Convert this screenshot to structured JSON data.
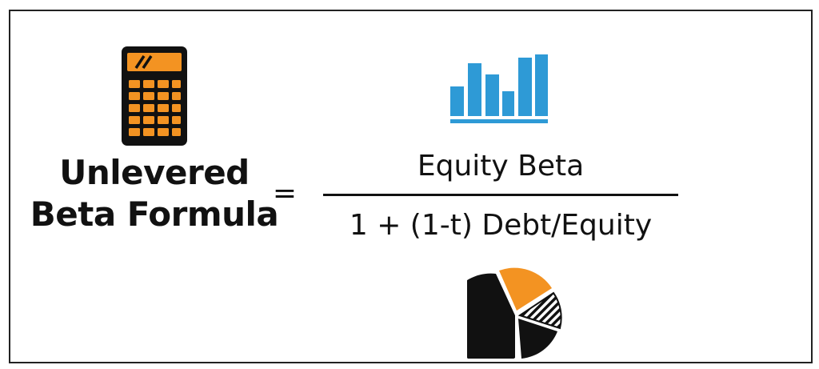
{
  "formula": {
    "name_line1": "Unlevered",
    "name_line2": "Beta Formula",
    "equals": "=",
    "numerator": "Equity Beta",
    "denominator": "1 + (1-t) Debt/Equity"
  },
  "icons": {
    "calculator": "calculator-icon",
    "bar_chart": "bar-chart-icon",
    "pie_chart": "pie-chart-icon"
  },
  "colors": {
    "orange": "#F39322",
    "blue": "#2E9AD6",
    "black": "#111111",
    "border": "#222222"
  }
}
